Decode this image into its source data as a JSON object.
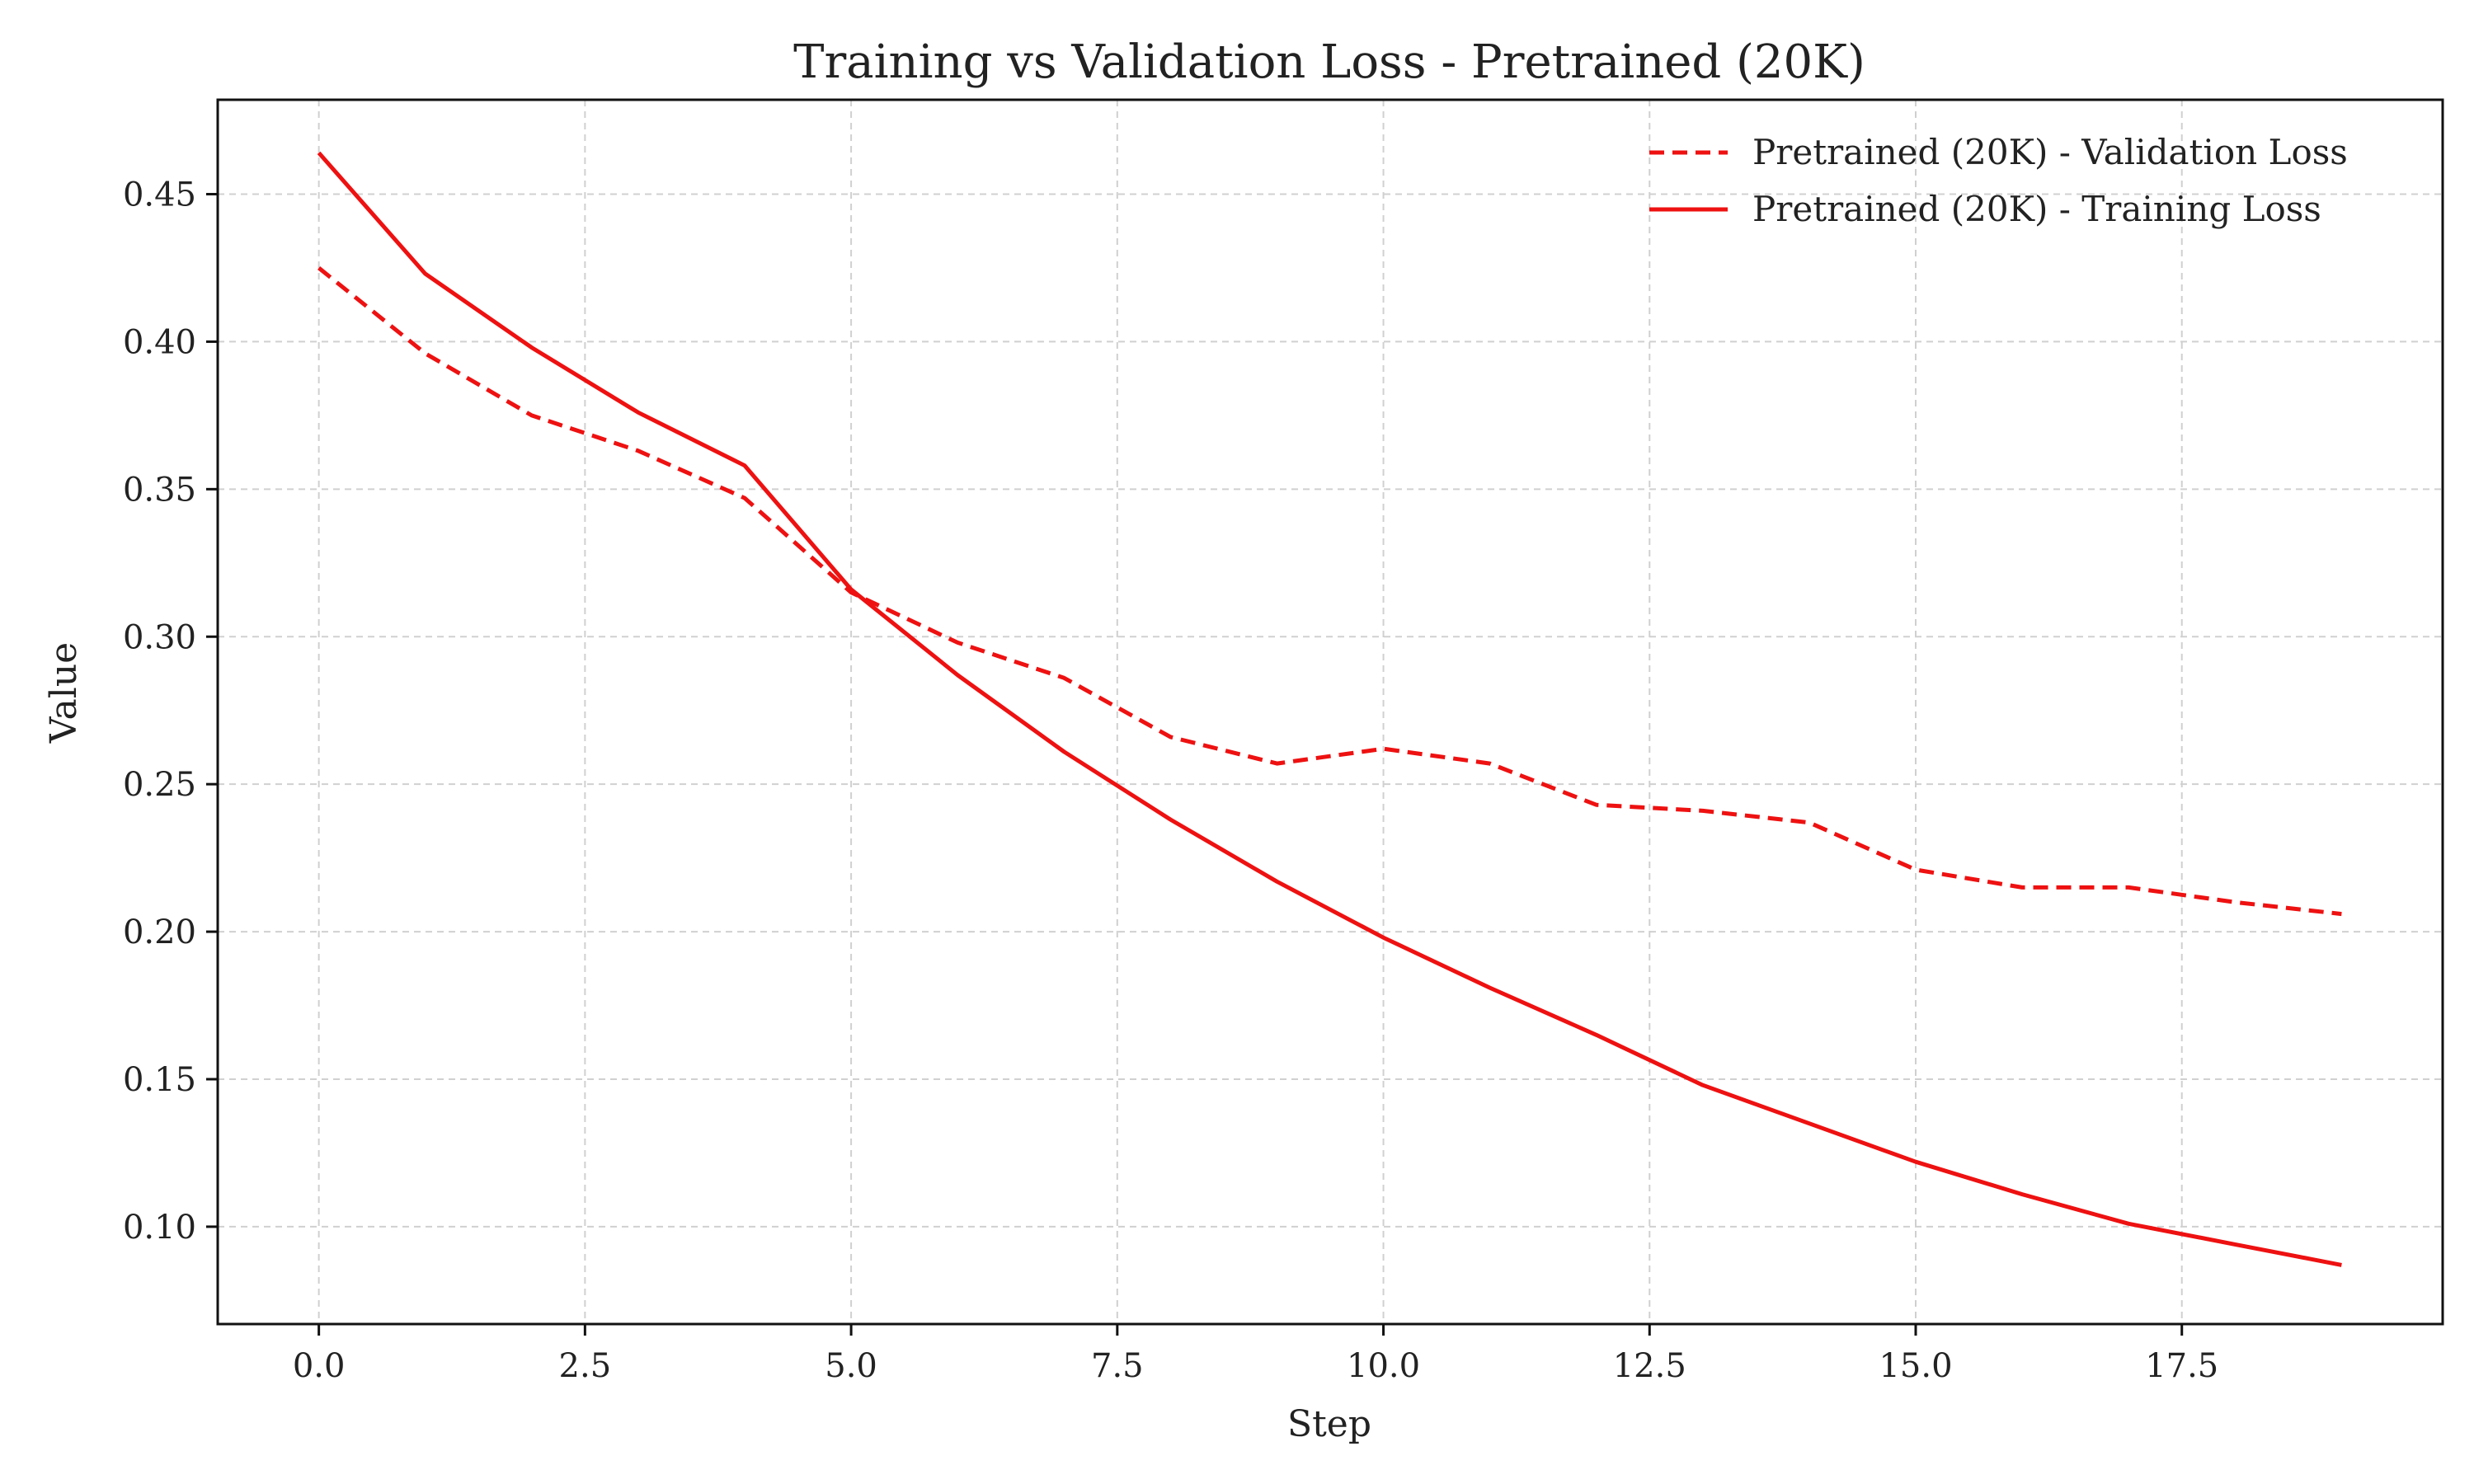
{
  "chart_data": {
    "type": "line",
    "title": "Training vs Validation Loss - Pretrained (20K)",
    "xlabel": "Step",
    "ylabel": "Value",
    "xlim": [
      -0.95,
      19.95
    ],
    "ylim": [
      0.067,
      0.482
    ],
    "xticks": [
      0.0,
      2.5,
      5.0,
      7.5,
      10.0,
      12.5,
      15.0,
      17.5
    ],
    "xtick_labels": [
      "0.0",
      "2.5",
      "5.0",
      "7.5",
      "10.0",
      "12.5",
      "15.0",
      "17.5"
    ],
    "yticks": [
      0.1,
      0.15,
      0.2,
      0.25,
      0.3,
      0.35,
      0.4,
      0.45
    ],
    "ytick_labels": [
      "0.10",
      "0.15",
      "0.20",
      "0.25",
      "0.30",
      "0.35",
      "0.40",
      "0.45"
    ],
    "grid": true,
    "legend_position": "top-right",
    "x": [
      0,
      1,
      2,
      3,
      4,
      5,
      6,
      7,
      8,
      9,
      10,
      11,
      12,
      13,
      14,
      15,
      16,
      17,
      18,
      19
    ],
    "series": [
      {
        "name": "Pretrained (20K) - Validation Loss",
        "style": "dashed",
        "color": "#ee1111",
        "values": [
          0.425,
          0.396,
          0.375,
          0.363,
          0.347,
          0.315,
          0.298,
          0.286,
          0.266,
          0.257,
          0.262,
          0.257,
          0.243,
          0.241,
          0.237,
          0.221,
          0.215,
          0.215,
          0.21,
          0.206
        ]
      },
      {
        "name": "Pretrained (20K) - Training Loss",
        "style": "solid",
        "color": "#ee1111",
        "values": [
          0.464,
          0.423,
          0.398,
          0.376,
          0.358,
          0.316,
          0.287,
          0.261,
          0.238,
          0.217,
          0.198,
          0.181,
          0.165,
          0.148,
          0.135,
          0.122,
          0.111,
          0.101,
          0.094,
          0.087
        ]
      }
    ]
  }
}
